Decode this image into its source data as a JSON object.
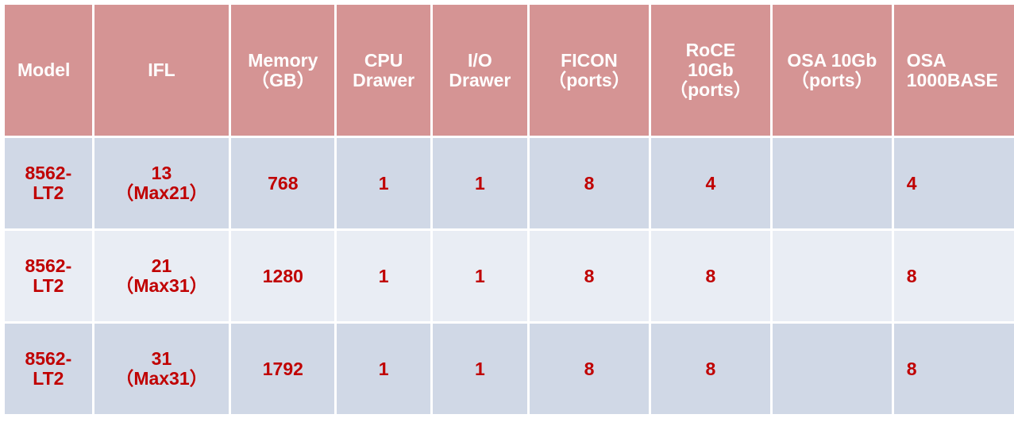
{
  "header": [
    [
      "Model"
    ],
    [
      "IFL"
    ],
    [
      "Memory",
      "（GB）"
    ],
    [
      "CPU",
      "Drawer"
    ],
    [
      "I/O",
      "Drawer"
    ],
    [
      "FICON",
      "（ports）"
    ],
    [
      "RoCE",
      "10Gb",
      "（ports）"
    ],
    [
      "OSA 10Gb",
      "（ports）"
    ],
    [
      "OSA",
      "1000BASE"
    ]
  ],
  "rows": [
    [
      [
        "8562-",
        "LT2"
      ],
      [
        "13",
        "（Max21）"
      ],
      [
        "768"
      ],
      [
        "1"
      ],
      [
        "1"
      ],
      [
        "8"
      ],
      [
        "4"
      ],
      [
        ""
      ],
      [
        "4"
      ]
    ],
    [
      [
        "8562-",
        "LT2"
      ],
      [
        "21",
        "（Max31）"
      ],
      [
        "1280"
      ],
      [
        "1"
      ],
      [
        "1"
      ],
      [
        "8"
      ],
      [
        "8"
      ],
      [
        ""
      ],
      [
        "8"
      ]
    ],
    [
      [
        "8562-",
        "LT2"
      ],
      [
        "31",
        "（Max31）"
      ],
      [
        "1792"
      ],
      [
        "1"
      ],
      [
        "1"
      ],
      [
        "8"
      ],
      [
        "8"
      ],
      [
        ""
      ],
      [
        "8"
      ]
    ]
  ],
  "colors": {
    "header_bg": "#D59494",
    "row_odd": "#D0D8E6",
    "row_even": "#E9EDF4",
    "value_text": "#C00000"
  }
}
